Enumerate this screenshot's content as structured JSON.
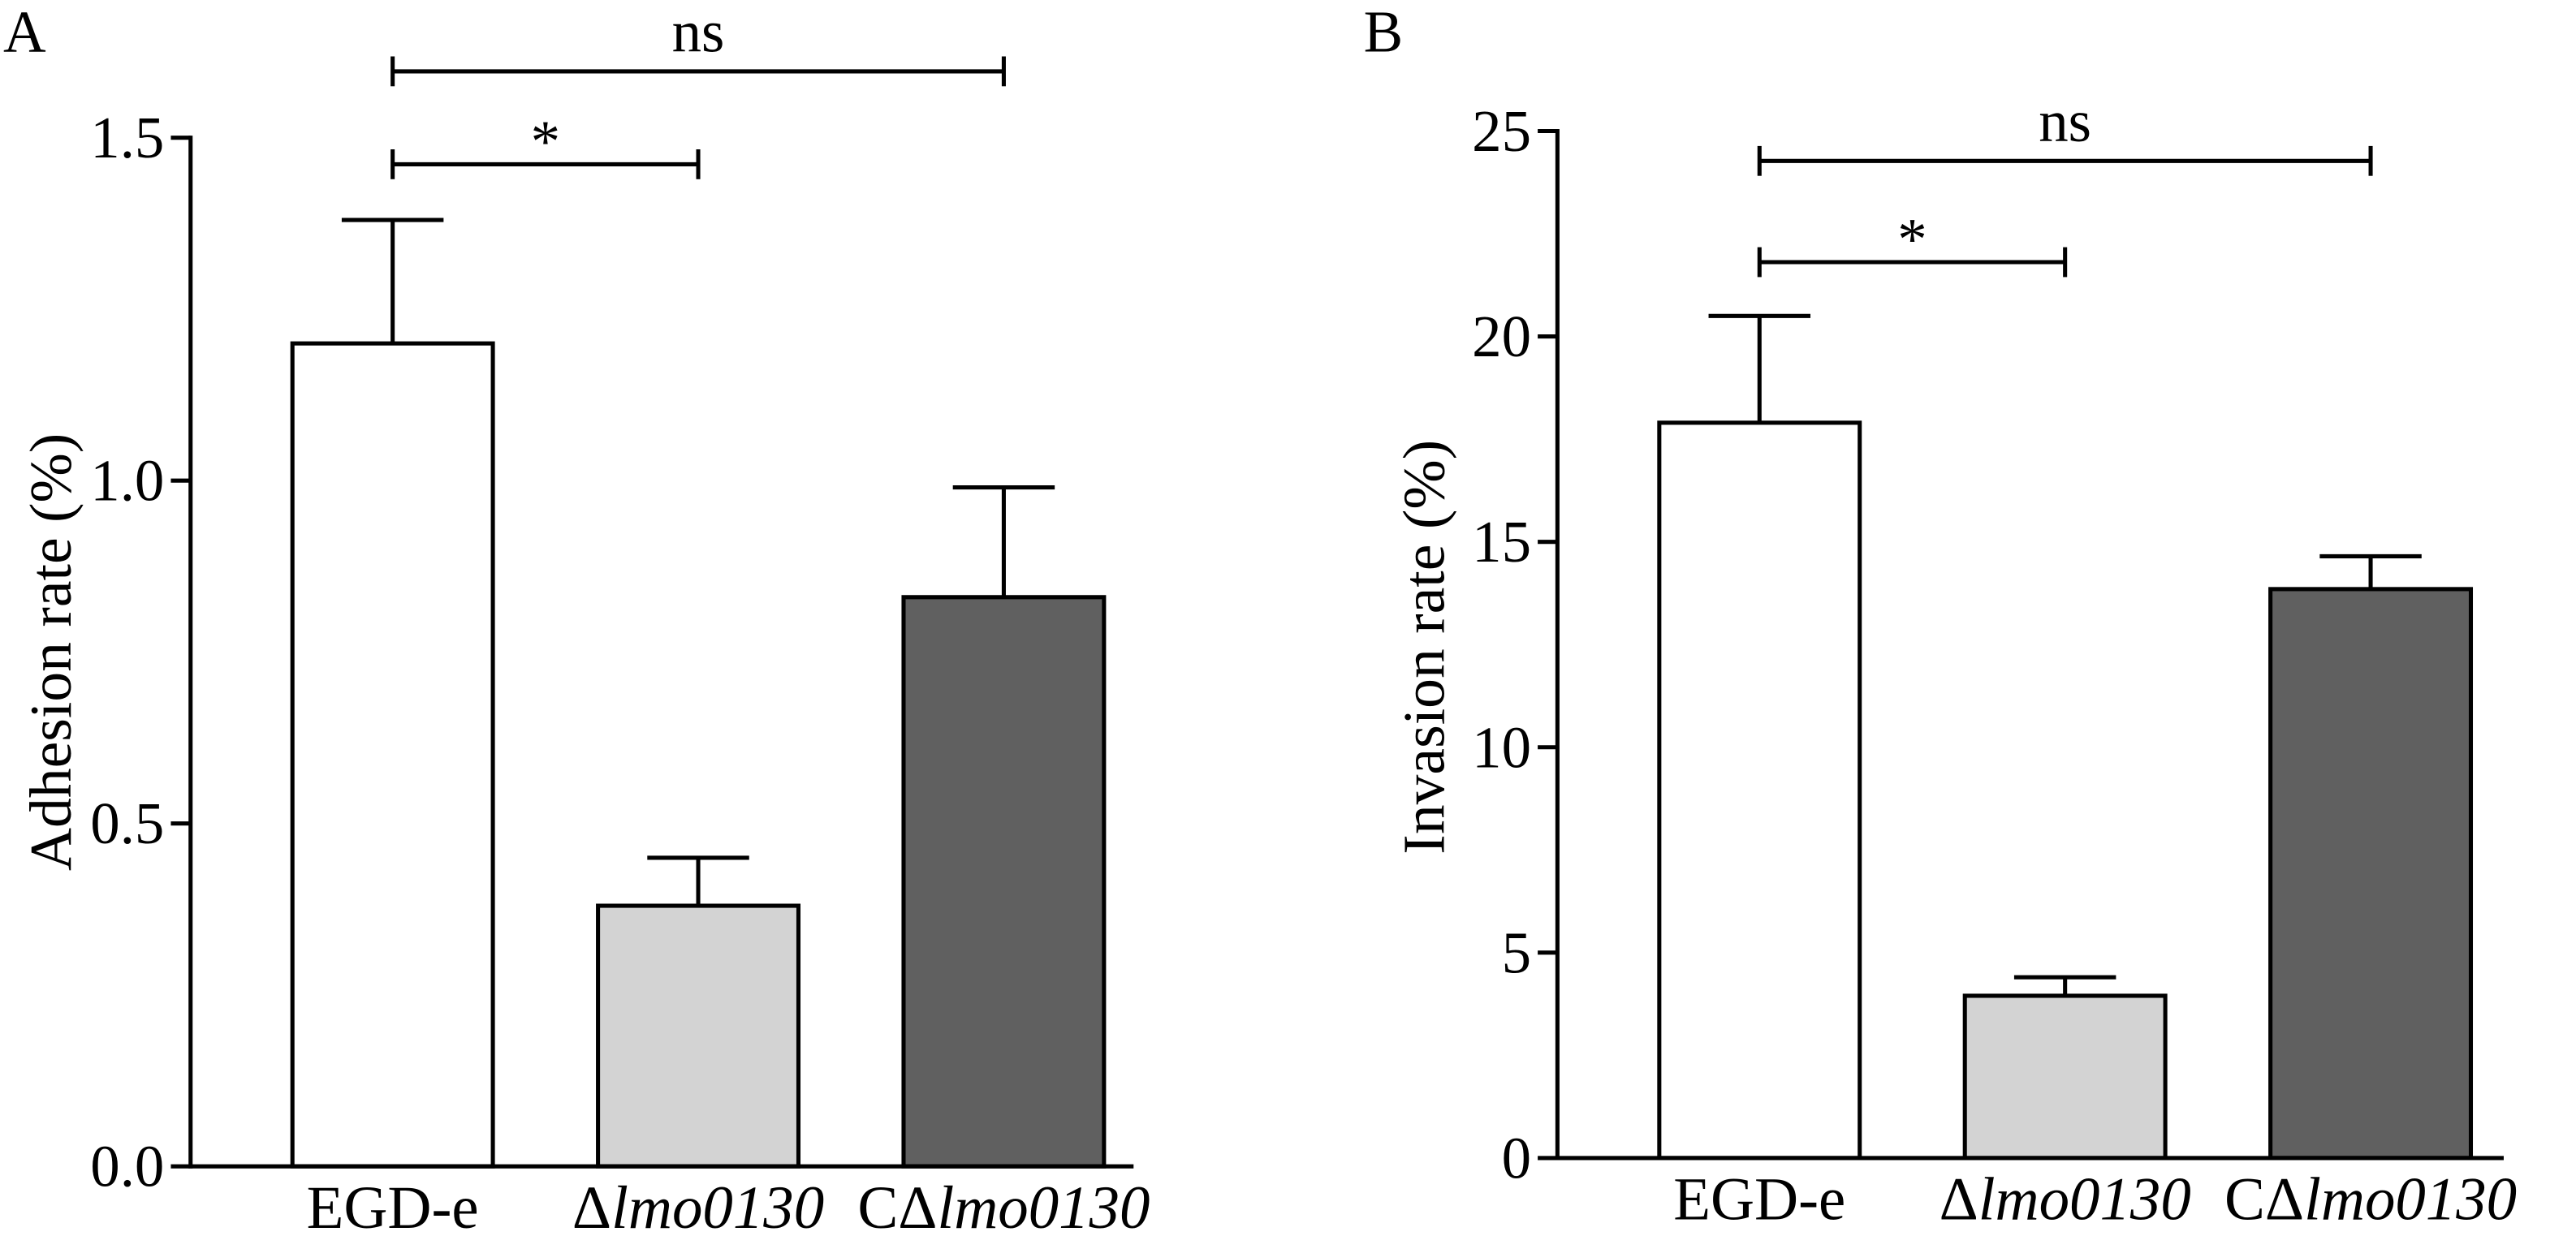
{
  "chart_data": [
    {
      "panel": "A",
      "type": "bar",
      "categories": [
        "EGD-e",
        "Δlmo0130",
        "CΔlmo0130"
      ],
      "values": [
        1.2,
        0.38,
        0.83
      ],
      "errors": [
        0.18,
        0.07,
        0.16
      ],
      "colors": [
        "#ffffff",
        "#d3d3d3",
        "#606060"
      ],
      "xlabel": "",
      "ylabel": "Adhesion rate (%)",
      "ylim": [
        0,
        1.5
      ],
      "ytick_labels": [
        "0.0",
        "0.5",
        "1.0",
        "1.5"
      ],
      "significance": [
        {
          "text": "*",
          "from": 0,
          "to": 1
        },
        {
          "text": "ns",
          "from": 0,
          "to": 2
        }
      ]
    },
    {
      "panel": "B",
      "type": "bar",
      "categories": [
        "EGD-e",
        "Δlmo0130",
        "CΔlmo0130"
      ],
      "values": [
        17.9,
        3.95,
        13.85
      ],
      "errors": [
        2.6,
        0.45,
        0.8
      ],
      "colors": [
        "#ffffff",
        "#d3d3d3",
        "#606060"
      ],
      "xlabel": "",
      "ylabel": "Invasion rate (%)",
      "ylim": [
        0,
        25
      ],
      "ytick_labels": [
        "0",
        "5",
        "10",
        "15",
        "20",
        "25"
      ],
      "significance": [
        {
          "text": "*",
          "from": 0,
          "to": 1
        },
        {
          "text": "ns",
          "from": 0,
          "to": 2
        }
      ]
    }
  ]
}
